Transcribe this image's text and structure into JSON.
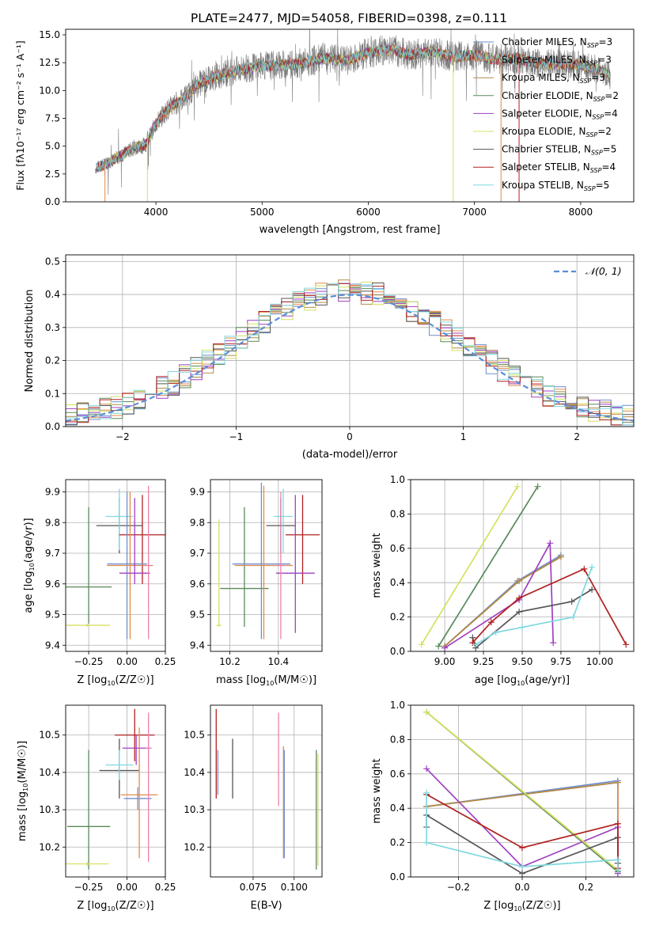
{
  "figure": {
    "title": "PLATE=2477, MJD=54058, FIBERID=0398, z=0.111"
  },
  "legend_models": [
    {
      "base": "Chabrier MILES, N",
      "sub": "SSP",
      "n": "=3",
      "color": "#6f8fcf"
    },
    {
      "base": "Salpeter MILES, N",
      "sub": "SSP",
      "n": "=3",
      "color": "#e08a4a"
    },
    {
      "base": "Kroupa MILES, N",
      "sub": "SSP",
      "n": "=3",
      "color": "#b08a4a"
    },
    {
      "base": "Chabrier ELODIE, N",
      "sub": "SSP",
      "n": "=2",
      "color": "#5a8a5a"
    },
    {
      "base": "Salpeter ELODIE, N",
      "sub": "SSP",
      "n": "=4",
      "color": "#a040c0"
    },
    {
      "base": "Kroupa ELODIE, N",
      "sub": "SSP",
      "n": "=2",
      "color": "#d6e060"
    },
    {
      "base": "Chabrier STELIB, N",
      "sub": "SSP",
      "n": "=5",
      "color": "#555555"
    },
    {
      "base": "Salpeter STELIB, N",
      "sub": "SSP",
      "n": "=4",
      "color": "#b02020"
    },
    {
      "base": "Kroupa STELIB, N",
      "sub": "SSP",
      "n": "=5",
      "color": "#80d8e0"
    }
  ],
  "chart_data": [
    {
      "id": "spectrum",
      "type": "line",
      "xlabel": "wavelength [Angstrom, rest frame]",
      "ylabel": "Flux [fλ10⁻¹⁷ erg cm⁻² s⁻¹ A⁻¹]",
      "xlim": [
        3150,
        8500
      ],
      "ylim": [
        0,
        15.5
      ],
      "xticks": [
        "4000",
        "5000",
        "6000",
        "7000",
        "8000"
      ],
      "yticks": [
        "0.0",
        "2.5",
        "5.0",
        "7.5",
        "10.0",
        "12.5",
        "15.0"
      ],
      "envelope": {
        "x": [
          3430,
          3500,
          3600,
          3700,
          3800,
          3900,
          4000,
          4100,
          4200,
          4300,
          4400,
          4500,
          4600,
          4800,
          5000,
          5200,
          5400,
          5600,
          5800,
          6000,
          6200,
          6400,
          6600,
          6800,
          7000,
          7200,
          7400,
          7600,
          7800,
          8000,
          8100,
          8200,
          8280
        ],
        "y": [
          3.0,
          3.3,
          3.8,
          4.3,
          4.9,
          5.1,
          7.0,
          8.2,
          8.9,
          9.6,
          10.6,
          11.0,
          11.4,
          11.9,
          12.2,
          12.3,
          12.5,
          12.9,
          12.7,
          13.4,
          13.7,
          13.2,
          13.5,
          13.0,
          13.2,
          12.8,
          12.9,
          12.4,
          12.4,
          12.3,
          12.0,
          11.8,
          11.3
        ]
      },
      "dropouts": [
        {
          "x": 3520,
          "color": "#e08a4a"
        },
        {
          "x": 3920,
          "color": "#d6e060"
        },
        {
          "x": 6800,
          "color": "#d6e060"
        },
        {
          "x": 7250,
          "color": "#e08a4a"
        },
        {
          "x": 7420,
          "color": "#b02020"
        }
      ]
    },
    {
      "id": "residuals",
      "type": "area",
      "xlabel": "(data-model)/error",
      "ylabel": "Normed distribution",
      "xlim": [
        -2.5,
        2.5
      ],
      "ylim": [
        0,
        0.52
      ],
      "xticks": [
        "−2",
        "−1",
        "0",
        "1",
        "2"
      ],
      "yticks": [
        "0.0",
        "0.1",
        "0.2",
        "0.3",
        "0.4",
        "0.5"
      ],
      "gaussian_label": "𝒩(0, 1)",
      "gaussian_color": "#5b8ed6",
      "bin_width": 0.1
    },
    {
      "id": "z-age",
      "type": "scatter",
      "xlabel_base": "Z [log",
      "xlabel_sub": "10",
      "xlabel_rest": "(Z/Z☉)]",
      "ylabel_base": "age  [log",
      "ylabel_sub": "10",
      "ylabel_rest": "(age/yr)]",
      "xlim": [
        -0.4,
        0.25
      ],
      "ylim": [
        9.38,
        9.94
      ],
      "xticks": [
        "−0.25",
        "0.00",
        "0.25"
      ],
      "yticks": [
        "9.4",
        "9.5",
        "9.6",
        "9.7",
        "9.8",
        "9.9"
      ],
      "points": [
        {
          "x": -0.25,
          "y": 9.59,
          "xerr": 0.15,
          "ylo": 9.47,
          "yhi": 9.85,
          "color": "#5a8a5a"
        },
        {
          "x": -0.26,
          "y": 9.465,
          "xerr": 0.15,
          "ylo": 9.46,
          "yhi": 9.47,
          "color": "#d6e060"
        },
        {
          "x": -0.05,
          "y": 9.79,
          "xerr": 0.15,
          "ylo": 9.7,
          "yhi": 9.88,
          "color": "#555555"
        },
        {
          "x": -0.05,
          "y": 9.82,
          "xerr": 0.09,
          "ylo": 9.71,
          "yhi": 9.91,
          "color": "#80d8e0"
        },
        {
          "x": 0.1,
          "y": 9.76,
          "xerr": 0.15,
          "ylo": 9.6,
          "yhi": 9.89,
          "color": "#b02020"
        },
        {
          "x": 0.0,
          "y": 9.665,
          "xerr": 0.13,
          "ylo": 9.42,
          "yhi": 9.9,
          "color": "#6f8fcf"
        },
        {
          "x": 0.02,
          "y": 9.66,
          "xerr": 0.15,
          "ylo": 9.42,
          "yhi": 9.9,
          "color": "#e08a4a"
        },
        {
          "x": 0.05,
          "y": 9.635,
          "xerr": 0.1,
          "ylo": 9.6,
          "yhi": 9.88,
          "color": "#a040c0"
        },
        {
          "x": 0.14,
          "y": 9.66,
          "xerr": 0.02,
          "ylo": 9.42,
          "yhi": 9.92,
          "color": "#f080b0"
        }
      ]
    },
    {
      "id": "mass-age",
      "type": "scatter",
      "xlabel_base": "mass [log",
      "xlabel_sub": "10",
      "xlabel_rest": "(M/M☉)]",
      "xlim": [
        10.12,
        10.58
      ],
      "ylim": [
        9.38,
        9.94
      ],
      "xticks": [
        "10.2",
        "10.4"
      ],
      "yticks": [
        "9.4",
        "9.5",
        "9.6",
        "9.7",
        "9.8",
        "9.9"
      ],
      "points": [
        {
          "x": 10.26,
          "y": 9.585,
          "xerr": 0.1,
          "ylo": 9.46,
          "yhi": 9.85,
          "color": "#5a8a5a"
        },
        {
          "x": 10.155,
          "y": 9.465,
          "xerr": 0.01,
          "ylo": 9.46,
          "yhi": 9.81,
          "color": "#d6e060"
        },
        {
          "x": 10.41,
          "y": 9.79,
          "xerr": 0.06,
          "ylo": 9.7,
          "yhi": 9.88,
          "color": "#555555"
        },
        {
          "x": 10.42,
          "y": 9.82,
          "xerr": 0.04,
          "ylo": 9.7,
          "yhi": 9.91,
          "color": "#80d8e0"
        },
        {
          "x": 10.5,
          "y": 9.76,
          "xerr": 0.07,
          "ylo": 9.6,
          "yhi": 9.89,
          "color": "#b02020"
        },
        {
          "x": 10.33,
          "y": 9.665,
          "xerr": 0.12,
          "ylo": 9.42,
          "yhi": 9.93,
          "color": "#6f8fcf"
        },
        {
          "x": 10.34,
          "y": 9.66,
          "xerr": 0.12,
          "ylo": 9.42,
          "yhi": 9.92,
          "color": "#e08a4a"
        },
        {
          "x": 10.47,
          "y": 9.635,
          "xerr": 0.08,
          "ylo": 9.44,
          "yhi": 9.89,
          "color": "#a040c0"
        },
        {
          "x": 10.41,
          "y": 9.66,
          "xerr": 0.02,
          "ylo": 9.42,
          "yhi": 9.9,
          "color": "#f080b0"
        }
      ]
    },
    {
      "id": "age-weight",
      "type": "line",
      "xlabel_base": "age  [log",
      "xlabel_sub": "10",
      "xlabel_rest": "(age/yr)]",
      "ylabel": "mass weight",
      "xlim": [
        8.78,
        10.22
      ],
      "ylim": [
        0,
        1
      ],
      "xticks": [
        "9.00",
        "9.25",
        "9.50",
        "9.75",
        "10.00"
      ],
      "yticks": [
        "0.0",
        "0.2",
        "0.4",
        "0.6",
        "0.8",
        "1.0"
      ],
      "series": [
        {
          "color": "#6f8fcf",
          "x": [
            9.0,
            9.47,
            9.75
          ],
          "y": [
            0.03,
            0.41,
            0.56
          ]
        },
        {
          "color": "#e08a4a",
          "x": [
            9.0,
            9.48,
            9.75
          ],
          "y": [
            0.03,
            0.41,
            0.55
          ]
        },
        {
          "color": "#b08a4a",
          "x": [
            9.0,
            9.48,
            9.75
          ],
          "y": [
            0.03,
            0.41,
            0.55
          ]
        },
        {
          "color": "#5a8a5a",
          "x": [
            8.96,
            9.6
          ],
          "y": [
            0.03,
            0.96
          ]
        },
        {
          "color": "#a040c0",
          "x": [
            9.0,
            9.48,
            9.68,
            9.7
          ],
          "y": [
            0.02,
            0.3,
            0.63,
            0.05
          ]
        },
        {
          "color": "#d6e060",
          "x": [
            8.85,
            9.47
          ],
          "y": [
            0.04,
            0.96
          ]
        },
        {
          "color": "#555555",
          "x": [
            9.18,
            9.2,
            9.48,
            9.82,
            9.95
          ],
          "y": [
            0.08,
            0.02,
            0.23,
            0.29,
            0.36
          ]
        },
        {
          "color": "#b02020",
          "x": [
            9.18,
            9.3,
            9.48,
            9.9,
            10.17
          ],
          "y": [
            0.05,
            0.17,
            0.31,
            0.48,
            0.04
          ]
        },
        {
          "color": "#80d8e0",
          "x": [
            9.2,
            9.33,
            9.5,
            9.83,
            9.95
          ],
          "y": [
            0.04,
            0.11,
            0.14,
            0.2,
            0.49
          ]
        }
      ]
    },
    {
      "id": "z-mass",
      "type": "scatter",
      "xlabel_base": "Z [log",
      "xlabel_sub": "10",
      "xlabel_rest": "(Z/Z☉)]",
      "ylabel_base": "mass [log",
      "ylabel_sub": "10",
      "ylabel_rest": "(M/M☉)]",
      "xlim": [
        -0.4,
        0.25
      ],
      "ylim": [
        10.12,
        10.58
      ],
      "xticks": [
        "−0.25",
        "0.00",
        "0.25"
      ],
      "yticks": [
        "10.2",
        "10.3",
        "10.4",
        "10.5"
      ],
      "points": [
        {
          "x": -0.25,
          "y": 10.255,
          "xerr": 0.14,
          "ylo": 10.14,
          "yhi": 10.46,
          "color": "#5a8a5a"
        },
        {
          "x": -0.26,
          "y": 10.155,
          "xerr": 0.14,
          "ylo": 10.15,
          "yhi": 10.16,
          "color": "#d6e060"
        },
        {
          "x": -0.05,
          "y": 10.405,
          "xerr": 0.13,
          "ylo": 10.33,
          "yhi": 10.49,
          "color": "#555555"
        },
        {
          "x": -0.05,
          "y": 10.42,
          "xerr": 0.09,
          "ylo": 10.38,
          "yhi": 10.46,
          "color": "#80d8e0"
        },
        {
          "x": 0.05,
          "y": 10.5,
          "xerr": 0.13,
          "ylo": 10.43,
          "yhi": 10.57,
          "color": "#b02020"
        },
        {
          "x": 0.06,
          "y": 10.465,
          "xerr": 0.09,
          "ylo": 10.42,
          "yhi": 10.5,
          "color": "#a040c0"
        },
        {
          "x": 0.07,
          "y": 10.33,
          "xerr": 0.09,
          "ylo": 10.3,
          "yhi": 10.36,
          "color": "#6f8fcf"
        },
        {
          "x": 0.08,
          "y": 10.34,
          "xerr": 0.12,
          "ylo": 10.17,
          "yhi": 10.52,
          "color": "#e08a4a"
        },
        {
          "x": 0.14,
          "y": 10.465,
          "xerr": 0.02,
          "ylo": 10.16,
          "yhi": 10.56,
          "color": "#f080b0"
        }
      ]
    },
    {
      "id": "ebv-mass",
      "type": "scatter",
      "xlabel": "E(B-V)",
      "xlim": [
        0.049,
        0.117
      ],
      "ylim": [
        10.12,
        10.58
      ],
      "xticks": [
        "0.075",
        "0.100"
      ],
      "yticks": [
        "10.2",
        "10.3",
        "10.4",
        "10.5"
      ],
      "points": [
        {
          "x": 0.0525,
          "y": 10.5,
          "ylo": 10.33,
          "yhi": 10.57,
          "color": "#b02020"
        },
        {
          "x": 0.0535,
          "y": 10.4,
          "ylo": 10.34,
          "yhi": 10.46,
          "color": "#6f8fcf"
        },
        {
          "x": 0.0625,
          "y": 10.405,
          "ylo": 10.33,
          "yhi": 10.49,
          "color": "#555555"
        },
        {
          "x": 0.0905,
          "y": 10.43,
          "ylo": 10.31,
          "yhi": 10.56,
          "color": "#f080b0"
        },
        {
          "x": 0.0935,
          "y": 10.33,
          "ylo": 10.17,
          "yhi": 10.47,
          "color": "#e08a4a"
        },
        {
          "x": 0.094,
          "y": 10.34,
          "ylo": 10.17,
          "yhi": 10.46,
          "color": "#6f8fcf"
        },
        {
          "x": 0.1135,
          "y": 10.3,
          "ylo": 10.14,
          "yhi": 10.46,
          "color": "#5a8a5a"
        },
        {
          "x": 0.1145,
          "y": 10.3,
          "ylo": 10.15,
          "yhi": 10.45,
          "color": "#d6e060"
        }
      ]
    },
    {
      "id": "z-weight",
      "type": "line",
      "xlabel_base": "Z [log",
      "xlabel_sub": "10",
      "xlabel_rest": "(Z/Z☉)]",
      "ylabel": "mass weight",
      "xlim": [
        -0.35,
        0.35
      ],
      "ylim": [
        0,
        1
      ],
      "xticks": [
        "−0.2",
        "0.0",
        "0.2"
      ],
      "yticks": [
        "0.0",
        "0.2",
        "0.4",
        "0.6",
        "0.8",
        "1.0"
      ],
      "series": [
        {
          "color": "#6f8fcf",
          "x": [
            -0.3,
            0.3,
            0.3
          ],
          "y": [
            0.41,
            0.56,
            0.03
          ]
        },
        {
          "color": "#e08a4a",
          "x": [
            -0.3,
            0.3,
            0.3
          ],
          "y": [
            0.41,
            0.55,
            0.04
          ]
        },
        {
          "color": "#b08a4a",
          "x": [
            -0.3,
            0.3
          ],
          "y": [
            0.41,
            0.55
          ]
        },
        {
          "color": "#5a8a5a",
          "x": [
            -0.3,
            0.3
          ],
          "y": [
            0.96,
            0.03
          ]
        },
        {
          "color": "#a040c0",
          "x": [
            -0.3,
            0.0,
            0.3,
            0.3
          ],
          "y": [
            0.63,
            0.06,
            0.29,
            0.02
          ]
        },
        {
          "color": "#d6e060",
          "x": [
            -0.3,
            0.3
          ],
          "y": [
            0.96,
            0.04
          ]
        },
        {
          "color": "#555555",
          "x": [
            -0.3,
            -0.3,
            0.0,
            0.3,
            0.3
          ],
          "y": [
            0.29,
            0.36,
            0.02,
            0.23,
            0.08
          ]
        },
        {
          "color": "#b02020",
          "x": [
            -0.3,
            0.0,
            0.3,
            0.3
          ],
          "y": [
            0.48,
            0.17,
            0.31,
            0.05
          ]
        },
        {
          "color": "#80d8e0",
          "x": [
            -0.3,
            -0.3,
            0.0,
            0.3,
            0.3
          ],
          "y": [
            0.49,
            0.2,
            0.06,
            0.1,
            0.04
          ]
        }
      ]
    }
  ]
}
